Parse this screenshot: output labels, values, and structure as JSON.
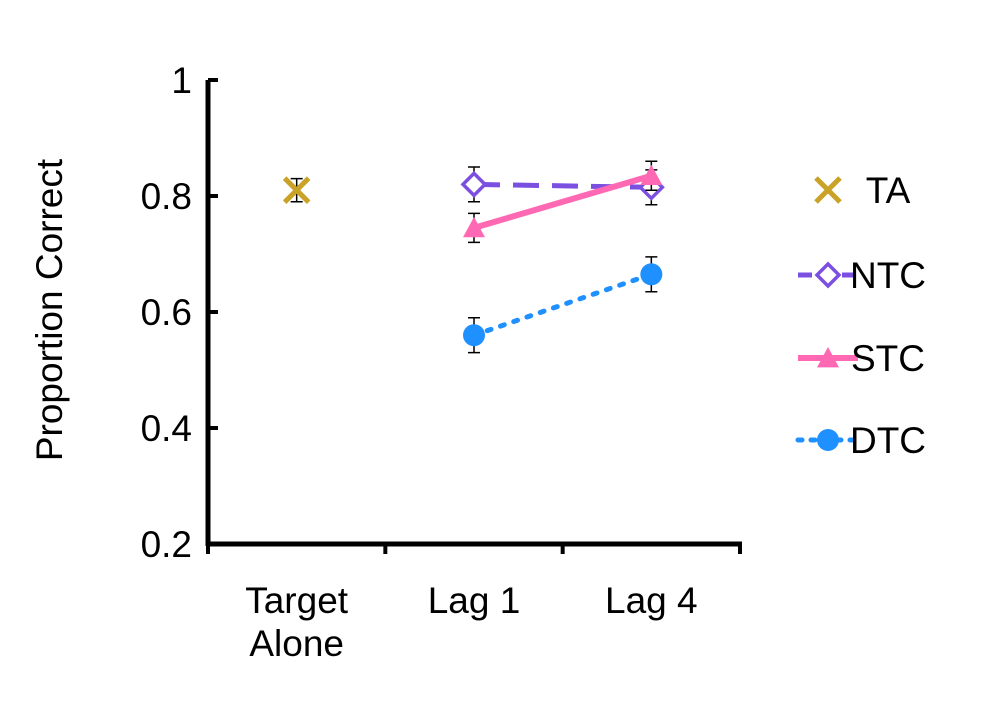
{
  "chart_data": {
    "type": "line",
    "title": "",
    "xlabel": "",
    "ylabel": "Proportion Correct",
    "ylim": [
      0.2,
      1
    ],
    "yticks": [
      "0.2",
      "0.4",
      "0.6",
      "0.8",
      "1"
    ],
    "categories": [
      [
        "Target",
        "Alone"
      ],
      [
        "Lag 1"
      ],
      [
        "Lag 4"
      ]
    ],
    "grid": false,
    "legend_position": "right",
    "series": [
      {
        "name": "TA",
        "marker": "x",
        "line": "none",
        "color": "#c9a227",
        "points": [
          {
            "cat": 0,
            "y": 0.81,
            "err": 0.02
          }
        ]
      },
      {
        "name": "NTC",
        "marker": "diamond",
        "line": "dashed",
        "color": "#7b4fe0",
        "points": [
          {
            "cat": 1,
            "y": 0.82,
            "err": 0.03
          },
          {
            "cat": 2,
            "y": 0.815,
            "err": 0.03
          }
        ]
      },
      {
        "name": "STC",
        "marker": "triangle",
        "line": "solid",
        "color": "#ff69b4",
        "points": [
          {
            "cat": 1,
            "y": 0.745,
            "err": 0.025
          },
          {
            "cat": 2,
            "y": 0.835,
            "err": 0.025
          }
        ]
      },
      {
        "name": "DTC",
        "marker": "circle",
        "line": "dotted",
        "color": "#1e90ff",
        "points": [
          {
            "cat": 1,
            "y": 0.56,
            "err": 0.03
          },
          {
            "cat": 2,
            "y": 0.665,
            "err": 0.03
          }
        ]
      }
    ]
  }
}
